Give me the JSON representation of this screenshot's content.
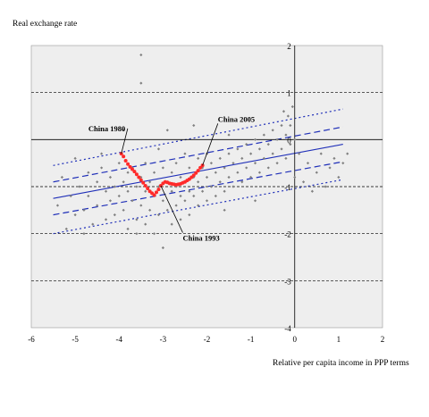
{
  "chart_data": {
    "type": "scatter",
    "title": "",
    "ylabel": "Real exchange rate",
    "xlabel": "Relative per capita income in PPP terms",
    "xlim": [
      -6,
      2
    ],
    "ylim": [
      -4,
      2
    ],
    "x_ticks": [
      -6,
      -5,
      -4,
      -3,
      -2,
      -1,
      0,
      1,
      2
    ],
    "x_tick_labels": [
      "-6",
      "-5",
      "-4",
      "-3",
      "-2",
      "-1",
      "0",
      "1",
      "2"
    ],
    "y_ticks": [
      2,
      1,
      0,
      -1,
      -2,
      -3,
      -4
    ],
    "y_tick_labels": [
      "2",
      "1",
      "0",
      "-1",
      "-2",
      "-3",
      "-4"
    ],
    "grid": "dashed horizontal lines at y = 1, -1, -2, -3",
    "plot_background": "#eeeeee",
    "fit_lines": [
      {
        "style": "solid",
        "x": [
          -5.5,
          1.1
        ],
        "y": [
          -1.25,
          -0.1
        ]
      },
      {
        "style": "dashed",
        "x": [
          -5.5,
          1.1
        ],
        "y": [
          -1.6,
          -0.47
        ]
      },
      {
        "style": "dashed",
        "x": [
          -5.5,
          1.1
        ],
        "y": [
          -0.9,
          0.27
        ]
      },
      {
        "style": "dotted",
        "x": [
          -5.5,
          1.1
        ],
        "y": [
          -2.0,
          -0.85
        ]
      },
      {
        "style": "dotted",
        "x": [
          -5.5,
          1.1
        ],
        "y": [
          -0.55,
          0.65
        ]
      }
    ],
    "series": [
      {
        "color": "#808080",
        "marker": "diamond",
        "points": [
          [
            -5.4,
            -1.4
          ],
          [
            -5.3,
            -0.8
          ],
          [
            -5.2,
            -1.9
          ],
          [
            -5.1,
            -1.2
          ],
          [
            -5.0,
            -0.4
          ],
          [
            -5.0,
            -1.6
          ],
          [
            -4.9,
            -1.0
          ],
          [
            -4.8,
            -1.5
          ],
          [
            -4.7,
            -0.7
          ],
          [
            -4.7,
            -1.2
          ],
          [
            -4.6,
            -1.8
          ],
          [
            -4.5,
            -0.9
          ],
          [
            -4.5,
            -1.4
          ],
          [
            -4.4,
            -0.6
          ],
          [
            -4.3,
            -1.1
          ],
          [
            -4.3,
            -1.7
          ],
          [
            -4.2,
            -0.8
          ],
          [
            -4.2,
            -1.3
          ],
          [
            -4.1,
            -1.0
          ],
          [
            -4.1,
            -1.6
          ],
          [
            -4.0,
            -0.5
          ],
          [
            -4.0,
            -1.2
          ],
          [
            -3.9,
            -0.9
          ],
          [
            -3.9,
            -1.5
          ],
          [
            -3.8,
            -0.7
          ],
          [
            -3.8,
            -1.1
          ],
          [
            -3.8,
            -1.9
          ],
          [
            -3.7,
            -0.6
          ],
          [
            -3.7,
            -1.3
          ],
          [
            -3.6,
            -1.0
          ],
          [
            -3.6,
            -1.7
          ],
          [
            -3.5,
            1.8
          ],
          [
            -3.5,
            1.2
          ],
          [
            -3.5,
            -0.8
          ],
          [
            -3.5,
            -1.4
          ],
          [
            -3.4,
            -0.5
          ],
          [
            -3.4,
            -1.1
          ],
          [
            -3.4,
            -1.8
          ],
          [
            -3.3,
            -0.9
          ],
          [
            -3.3,
            -1.5
          ],
          [
            -3.2,
            -0.7
          ],
          [
            -3.2,
            -1.2
          ],
          [
            -3.2,
            -2.0
          ],
          [
            -3.1,
            -1.0
          ],
          [
            -3.1,
            -1.6
          ],
          [
            -3.0,
            -0.6
          ],
          [
            -3.0,
            -1.3
          ],
          [
            -3.0,
            -2.3
          ],
          [
            -2.9,
            -0.9
          ],
          [
            -2.9,
            -1.5
          ],
          [
            -2.8,
            -0.7
          ],
          [
            -2.8,
            -1.1
          ],
          [
            -2.8,
            -1.8
          ],
          [
            -2.7,
            -0.5
          ],
          [
            -2.7,
            -1.0
          ],
          [
            -2.7,
            -1.4
          ],
          [
            -2.6,
            -0.8
          ],
          [
            -2.6,
            -1.2
          ],
          [
            -2.6,
            -1.7
          ],
          [
            -2.5,
            -0.3
          ],
          [
            -2.5,
            -0.9
          ],
          [
            -2.5,
            -1.3
          ],
          [
            -2.4,
            -0.6
          ],
          [
            -2.4,
            -1.1
          ],
          [
            -2.4,
            -1.6
          ],
          [
            -2.3,
            -0.8
          ],
          [
            -2.3,
            -1.2
          ],
          [
            -2.2,
            -0.4
          ],
          [
            -2.2,
            -0.9
          ],
          [
            -2.2,
            -1.4
          ],
          [
            -2.1,
            -0.6
          ],
          [
            -2.1,
            -1.1
          ],
          [
            -2.0,
            -0.3
          ],
          [
            -2.0,
            -0.8
          ],
          [
            -2.0,
            -1.3
          ],
          [
            -1.9,
            -0.5
          ],
          [
            -1.9,
            -1.0
          ],
          [
            -1.8,
            -0.7
          ],
          [
            -1.8,
            -1.2
          ],
          [
            -1.7,
            -0.4
          ],
          [
            -1.7,
            -0.9
          ],
          [
            -1.6,
            -0.6
          ],
          [
            -1.6,
            -1.1
          ],
          [
            -1.5,
            -0.3
          ],
          [
            -1.5,
            -0.8
          ],
          [
            -1.4,
            -0.5
          ],
          [
            -1.4,
            -1.0
          ],
          [
            -1.3,
            -0.2
          ],
          [
            -1.3,
            -0.7
          ],
          [
            -1.2,
            -0.4
          ],
          [
            -1.2,
            -0.9
          ],
          [
            -1.1,
            -0.1
          ],
          [
            -1.1,
            -0.6
          ],
          [
            -1.0,
            -0.3
          ],
          [
            -1.0,
            -0.8
          ],
          [
            -0.9,
            -0.5
          ],
          [
            -0.9,
            0.0
          ],
          [
            -0.8,
            -0.2
          ],
          [
            -0.8,
            -0.7
          ],
          [
            -0.7,
            -0.4
          ],
          [
            -0.7,
            0.1
          ],
          [
            -0.6,
            -0.1
          ],
          [
            -0.6,
            -0.6
          ],
          [
            -0.5,
            -0.3
          ],
          [
            -0.5,
            0.2
          ],
          [
            -0.4,
            0.0
          ],
          [
            -0.4,
            -0.5
          ],
          [
            -0.3,
            0.3
          ],
          [
            -0.3,
            -0.2
          ],
          [
            -0.25,
            0.6
          ],
          [
            -0.2,
            0.1
          ],
          [
            -0.2,
            -0.4
          ],
          [
            -0.15,
            0.5
          ],
          [
            -0.1,
            -0.1
          ],
          [
            -0.1,
            0.3
          ],
          [
            -0.05,
            0.7
          ],
          [
            0.0,
            0.0
          ],
          [
            0.0,
            -0.8
          ],
          [
            0.1,
            -0.3
          ],
          [
            0.2,
            -0.9
          ],
          [
            0.3,
            -0.5
          ],
          [
            0.4,
            -1.1
          ],
          [
            0.5,
            -0.7
          ],
          [
            0.6,
            -0.3
          ],
          [
            0.7,
            -1.0
          ],
          [
            0.8,
            -0.6
          ],
          [
            0.9,
            -0.4
          ],
          [
            1.0,
            -0.8
          ],
          [
            1.1,
            -0.5
          ],
          [
            1.2,
            -0.3
          ],
          [
            -4.4,
            -0.3
          ],
          [
            -3.9,
            0.2
          ],
          [
            -3.1,
            -0.2
          ],
          [
            -2.3,
            0.3
          ],
          [
            -1.6,
            -1.5
          ],
          [
            -0.9,
            -1.3
          ],
          [
            -2.9,
            0.2
          ],
          [
            -1.5,
            0.1
          ],
          [
            -3.6,
            -2.0
          ],
          [
            -4.8,
            -2.0
          ]
        ]
      },
      {
        "color": "#ff2a2a",
        "marker": "circle",
        "points": [
          [
            -3.95,
            -0.3
          ],
          [
            -3.9,
            -0.36
          ],
          [
            -3.85,
            -0.45
          ],
          [
            -3.8,
            -0.52
          ],
          [
            -3.75,
            -0.58
          ],
          [
            -3.7,
            -0.63
          ],
          [
            -3.65,
            -0.68
          ],
          [
            -3.6,
            -0.74
          ],
          [
            -3.55,
            -0.8
          ],
          [
            -3.5,
            -0.86
          ],
          [
            -3.45,
            -0.92
          ],
          [
            -3.4,
            -0.98
          ],
          [
            -3.35,
            -1.04
          ],
          [
            -3.3,
            -1.1
          ],
          [
            -3.25,
            -1.14
          ],
          [
            -3.2,
            -1.18
          ],
          [
            -3.15,
            -1.12
          ],
          [
            -3.1,
            -1.06
          ],
          [
            -3.05,
            -0.98
          ],
          [
            -3.0,
            -0.93
          ],
          [
            -2.95,
            -0.9
          ],
          [
            -2.9,
            -0.91
          ],
          [
            -2.85,
            -0.93
          ],
          [
            -2.8,
            -0.94
          ],
          [
            -2.75,
            -0.95
          ],
          [
            -2.7,
            -0.96
          ],
          [
            -2.65,
            -0.95
          ],
          [
            -2.6,
            -0.94
          ],
          [
            -2.55,
            -0.92
          ],
          [
            -2.5,
            -0.9
          ],
          [
            -2.45,
            -0.87
          ],
          [
            -2.4,
            -0.84
          ],
          [
            -2.35,
            -0.8
          ],
          [
            -2.3,
            -0.76
          ],
          [
            -2.25,
            -0.71
          ],
          [
            -2.2,
            -0.66
          ],
          [
            -2.15,
            -0.6
          ],
          [
            -2.1,
            -0.55
          ]
        ]
      }
    ],
    "annotations": [
      {
        "text": "China 1980",
        "x": -4.7,
        "y": 0.18,
        "arrow_to": [
          -3.95,
          -0.3
        ]
      },
      {
        "text": "China 2005",
        "x": -1.75,
        "y": 0.38,
        "arrow_to": [
          -2.1,
          -0.55
        ]
      },
      {
        "text": "China 1993",
        "x": -2.55,
        "y": -2.15,
        "arrow_to": [
          -3.05,
          -0.98
        ]
      }
    ]
  }
}
